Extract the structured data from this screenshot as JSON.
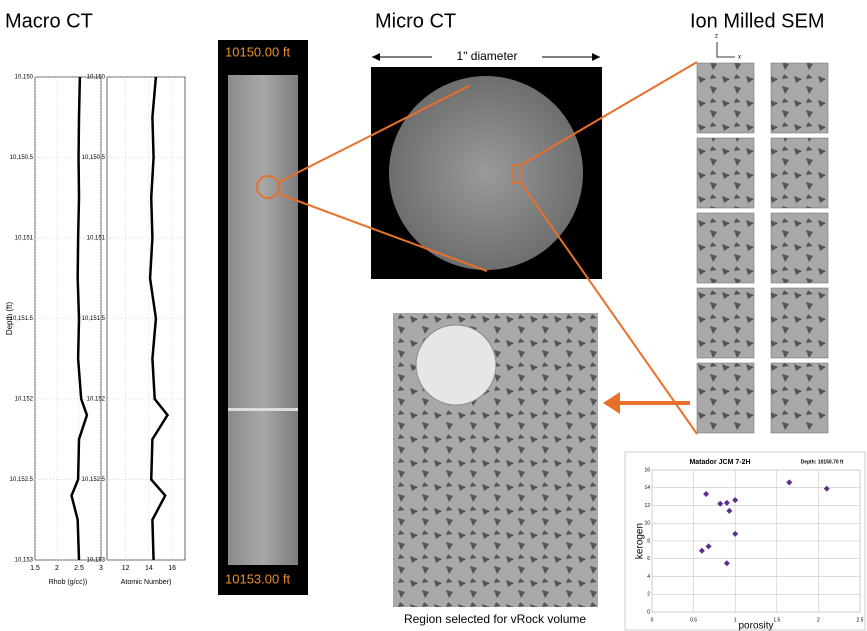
{
  "headings": {
    "macro": "Macro CT",
    "micro": "Micro CT",
    "sem": "Ion Milled SEM"
  },
  "core": {
    "top": "10150.00 ft",
    "bottom": "10153.00 ft"
  },
  "micro_ct": {
    "diameter": "1\" diameter"
  },
  "sem": {
    "axis_z": "z",
    "axis_x": "x"
  },
  "vrock": {
    "caption": "Region selected for vRock volume"
  },
  "chart_data": [
    {
      "type": "line",
      "orientation": "vertical",
      "color": "#000000",
      "ylabel": "Depth (ft)",
      "xlabel": "Rhob (g/cc))",
      "x": [
        10150,
        10150.25,
        10150.5,
        10150.75,
        10151,
        10151.25,
        10151.5,
        10151.75,
        10152,
        10152.1,
        10152.25,
        10152.5,
        10152.6,
        10152.75,
        10153
      ],
      "values": [
        2.52,
        2.5,
        2.49,
        2.5,
        2.48,
        2.47,
        2.5,
        2.48,
        2.55,
        2.68,
        2.5,
        2.48,
        2.33,
        2.47,
        2.5
      ],
      "xlim": [
        1.5,
        3
      ],
      "xticks": [
        1.5,
        2,
        2.5,
        3
      ],
      "ylim": [
        10153,
        10150
      ],
      "yticks": [
        {
          "value": 10150,
          "label": "10,150"
        },
        {
          "value": 10150.5,
          "label": "10,150.5"
        },
        {
          "value": 10151,
          "label": "10,151"
        },
        {
          "value": 10151.5,
          "label": "10,151.5"
        },
        {
          "value": 10152,
          "label": "10,152"
        },
        {
          "value": 10152.5,
          "label": "10,152.5"
        },
        {
          "value": 10153,
          "label": "10,153"
        }
      ],
      "grid": true
    },
    {
      "type": "line",
      "orientation": "vertical",
      "color": "#000000",
      "xlabel": "Atomic Number)",
      "x": [
        10150,
        10150.25,
        10150.5,
        10150.75,
        10151,
        10151.25,
        10151.5,
        10151.75,
        10152,
        10152.1,
        10152.25,
        10152.5,
        10152.6,
        10152.75,
        10153
      ],
      "values": [
        14.6,
        14.3,
        14.4,
        14.2,
        14.3,
        14.1,
        14.6,
        14.3,
        14.5,
        15.6,
        14.3,
        14.2,
        15.4,
        14.3,
        14.4
      ],
      "xlim": [
        10.4,
        17.1
      ],
      "xticks": [
        12,
        14,
        16
      ],
      "ylim": [
        10153,
        10150
      ],
      "yticks": [
        {
          "value": 10150,
          "label": "10,150"
        },
        {
          "value": 10150.5,
          "label": "10,150.5"
        },
        {
          "value": 10151,
          "label": "10,151"
        },
        {
          "value": 10151.5,
          "label": "10,151.5"
        },
        {
          "value": 10152,
          "label": "10,152"
        },
        {
          "value": 10152.5,
          "label": "10,152.5"
        },
        {
          "value": 10153,
          "label": "10,153"
        }
      ],
      "grid": true
    },
    {
      "type": "scatter",
      "title": "Matador JCM 7-2H",
      "subtitle": "Depth: 10150.70 ft",
      "xlabel": "porosity",
      "ylabel": "kerogen",
      "color": "#5b2d8e",
      "x": [
        0.65,
        0.82,
        0.9,
        1.0,
        0.93,
        1.0,
        0.68,
        0.6,
        0.9,
        1.65,
        2.1
      ],
      "values": [
        13.3,
        12.2,
        12.3,
        12.6,
        11.4,
        8.8,
        7.4,
        6.9,
        5.5,
        14.6,
        13.9
      ],
      "xlim": [
        0,
        2.5
      ],
      "xticks": [
        0,
        0.5,
        1,
        1.5,
        2,
        2.5
      ],
      "ylim": [
        0,
        16
      ],
      "yticks": [
        0,
        2,
        4,
        6,
        8,
        10,
        12,
        14,
        16
      ],
      "grid": true
    }
  ]
}
